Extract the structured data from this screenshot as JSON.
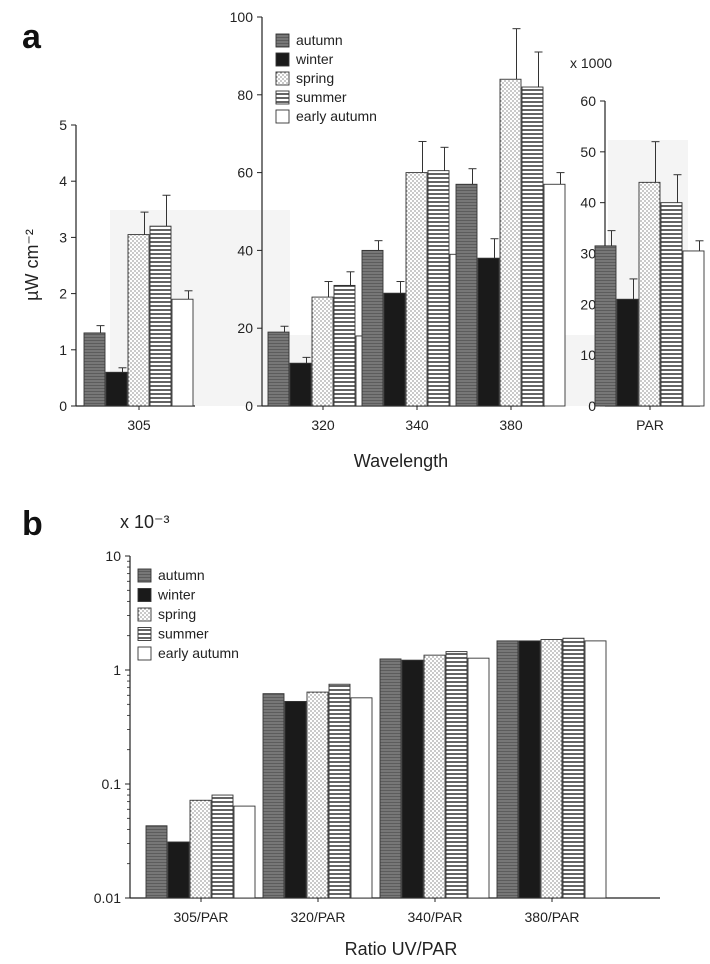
{
  "panels": {
    "a": "a",
    "b": "b"
  },
  "series_names": [
    "autumn",
    "winter",
    "spring",
    "summer",
    "early autumn"
  ],
  "chart_data": [
    {
      "type": "bar",
      "panel": "a",
      "subplot": "305",
      "categories": [
        "305"
      ],
      "series": [
        {
          "name": "autumn",
          "values": [
            1.3
          ],
          "errors": [
            0.13
          ]
        },
        {
          "name": "winter",
          "values": [
            0.6
          ],
          "errors": [
            0.08
          ]
        },
        {
          "name": "spring",
          "values": [
            3.05
          ],
          "errors": [
            0.4
          ]
        },
        {
          "name": "summer",
          "values": [
            3.2
          ],
          "errors": [
            0.55
          ]
        },
        {
          "name": "early autumn",
          "values": [
            1.9
          ],
          "errors": [
            0.15
          ]
        }
      ],
      "ylabel": "µW cm⁻²",
      "ylim": [
        0,
        5
      ],
      "yticks": [
        "0",
        "1",
        "2",
        "3",
        "4",
        "5"
      ]
    },
    {
      "type": "bar",
      "panel": "a",
      "subplot": "320-380",
      "categories": [
        "320",
        "340",
        "380"
      ],
      "series": [
        {
          "name": "autumn",
          "values": [
            19,
            40,
            57
          ],
          "errors": [
            1.5,
            2.5,
            4
          ]
        },
        {
          "name": "winter",
          "values": [
            11,
            29,
            38
          ],
          "errors": [
            1.5,
            3,
            5
          ]
        },
        {
          "name": "spring",
          "values": [
            28,
            60,
            84
          ],
          "errors": [
            4,
            8,
            13
          ]
        },
        {
          "name": "summer",
          "values": [
            31,
            60.5,
            82
          ],
          "errors": [
            3.5,
            6,
            9
          ]
        },
        {
          "name": "early autumn",
          "values": [
            18,
            39,
            57
          ],
          "errors": [
            1,
            2.5,
            3
          ]
        }
      ],
      "xlabel": "Wavelength",
      "ylim": [
        0,
        100
      ],
      "yticks": [
        "0",
        "20",
        "40",
        "60",
        "80",
        "100"
      ]
    },
    {
      "type": "bar",
      "panel": "a",
      "subplot": "PAR",
      "categories": [
        "PAR"
      ],
      "series": [
        {
          "name": "autumn",
          "values": [
            31.5
          ],
          "errors": [
            3
          ]
        },
        {
          "name": "winter",
          "values": [
            21
          ],
          "errors": [
            4
          ]
        },
        {
          "name": "spring",
          "values": [
            44
          ],
          "errors": [
            8
          ]
        },
        {
          "name": "summer",
          "values": [
            40
          ],
          "errors": [
            5.5
          ]
        },
        {
          "name": "early autumn",
          "values": [
            30.5
          ],
          "errors": [
            2
          ]
        }
      ],
      "yscale_label": "x 1000",
      "ylim": [
        0,
        60
      ],
      "yticks": [
        "0",
        "10",
        "20",
        "30",
        "40",
        "50",
        "60"
      ]
    },
    {
      "type": "bar",
      "panel": "b",
      "categories": [
        "305/PAR",
        "320/PAR",
        "340/PAR",
        "380/PAR"
      ],
      "series": [
        {
          "name": "autumn",
          "values": [
            0.043,
            0.62,
            1.25,
            1.8
          ]
        },
        {
          "name": "winter",
          "values": [
            0.031,
            0.53,
            1.22,
            1.8
          ]
        },
        {
          "name": "spring",
          "values": [
            0.072,
            0.64,
            1.35,
            1.85
          ]
        },
        {
          "name": "summer",
          "values": [
            0.08,
            0.75,
            1.45,
            1.9
          ]
        },
        {
          "name": "early autumn",
          "values": [
            0.064,
            0.57,
            1.27,
            1.8
          ]
        }
      ],
      "xlabel": "Ratio UV/PAR",
      "yscale_label": "x 10⁻³",
      "yscale": "log",
      "ylim": [
        0.01,
        10
      ],
      "yticks": [
        "0.01",
        "0.1",
        "1",
        "10"
      ]
    }
  ]
}
